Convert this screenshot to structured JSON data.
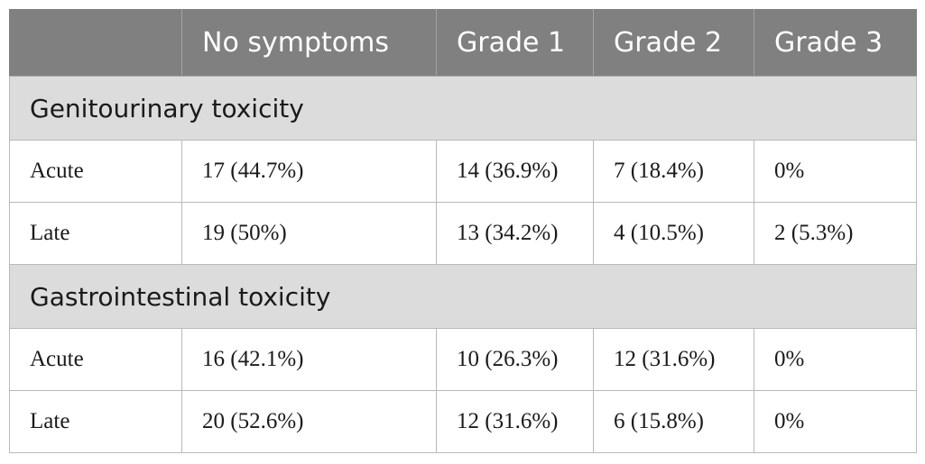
{
  "header": {
    "columns": [
      "",
      "No symptoms",
      "Grade 1",
      "Grade 2",
      "Grade 3"
    ]
  },
  "sections": [
    {
      "title": "Genitourinary toxicity",
      "rows": [
        {
          "label": "Acute",
          "values": [
            "17 (44.7%)",
            "14 (36.9%)",
            "7 (18.4%)",
            "0%"
          ]
        },
        {
          "label": "Late",
          "values": [
            "19 (50%)",
            "13 (34.2%)",
            "4 (10.5%)",
            "2 (5.3%)"
          ]
        }
      ]
    },
    {
      "title": "Gastrointestinal toxicity",
      "rows": [
        {
          "label": "Acute",
          "values": [
            "16 (42.1%)",
            "10 (26.3%)",
            "12 (31.6%)",
            "0%"
          ]
        },
        {
          "label": "Late",
          "values": [
            "20 (52.6%)",
            "12 (31.6%)",
            "6 (15.8%)",
            "0%"
          ]
        }
      ]
    }
  ],
  "colors": {
    "header_bg": "#808080",
    "section_bg": "#dcdcdc",
    "border": "#b9b9b9"
  }
}
